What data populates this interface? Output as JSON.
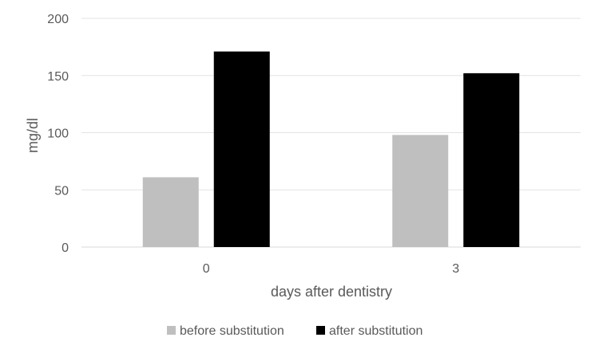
{
  "chart_data": {
    "type": "bar",
    "categories": [
      "0",
      "3"
    ],
    "series": [
      {
        "name": "before substitution",
        "values": [
          61,
          98
        ],
        "color": "#bfbfbf"
      },
      {
        "name": "after substitution",
        "values": [
          171,
          152
        ],
        "color": "#000000"
      }
    ],
    "xlabel": "days after dentistry",
    "ylabel": "mg/dl",
    "ylim": [
      0,
      200
    ],
    "yticks": [
      0,
      50,
      100,
      150,
      200
    ],
    "grid": true,
    "legend_position": "bottom"
  }
}
